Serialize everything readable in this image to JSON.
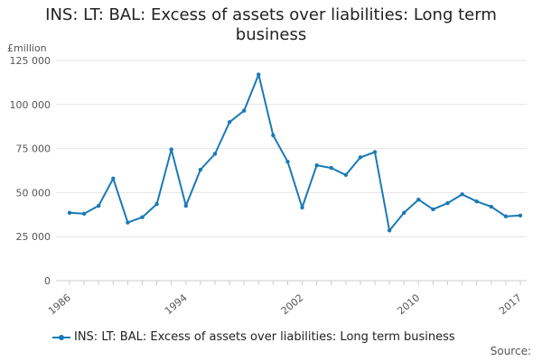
{
  "chart_data": {
    "type": "line",
    "title": "INS: LT: BAL: Excess of assets over liabilities: Long term business",
    "ylabel": "£million",
    "xlabel": "",
    "ylim": [
      0,
      125000
    ],
    "yticks": [
      0,
      25000,
      50000,
      75000,
      100000,
      125000
    ],
    "ytick_labels": [
      "0",
      "25 000",
      "50 000",
      "75 000",
      "100 000",
      "125 000"
    ],
    "xlim": [
      1986,
      2017
    ],
    "xtick_labels": [
      "1986",
      "1994",
      "2002",
      "2010",
      "2017"
    ],
    "grid": true,
    "legend_position": "bottom",
    "series": [
      {
        "name": "INS: LT: BAL: Excess of assets over liabilities: Long term business",
        "color": "#1a7ab5",
        "x": [
          1986,
          1987,
          1988,
          1989,
          1990,
          1991,
          1992,
          1993,
          1994,
          1995,
          1996,
          1997,
          1998,
          1999,
          2000,
          2001,
          2002,
          2003,
          2004,
          2005,
          2006,
          2007,
          2008,
          2009,
          2010,
          2011,
          2012,
          2013,
          2014,
          2015,
          2016,
          2017
        ],
        "values": [
          38500,
          38000,
          42500,
          58000,
          33000,
          36000,
          43500,
          74500,
          42500,
          63000,
          72000,
          90000,
          96500,
          117000,
          82500,
          67500,
          41500,
          65500,
          64000,
          60000,
          70000,
          73000,
          28500,
          38500,
          46000,
          40500,
          44000,
          49000,
          45000,
          42000,
          36500,
          37000
        ]
      }
    ]
  },
  "legend": {
    "label": "INS: LT: BAL: Excess of assets over liabilities: Long term business"
  },
  "footer": {
    "source_label": "Source:"
  }
}
